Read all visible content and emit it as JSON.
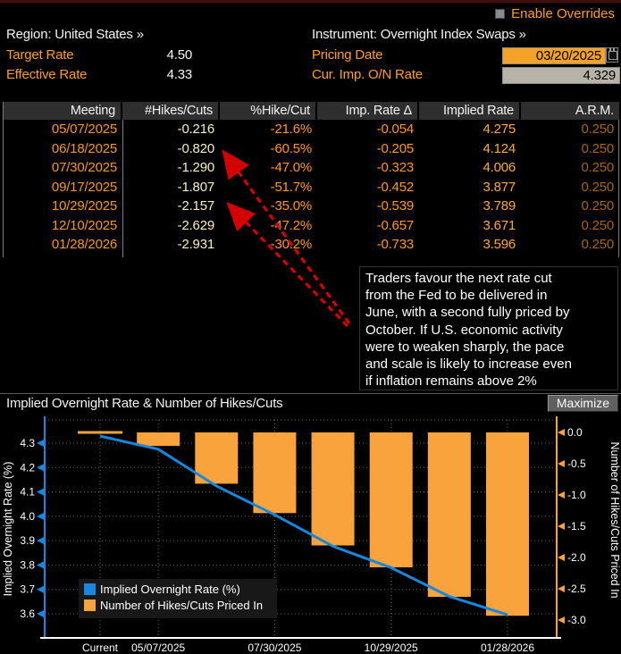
{
  "header": {
    "enable_overrides": "Enable Overrides",
    "region_label": "Region: United States »",
    "instrument_label": "Instrument: Overnight Index Swaps »",
    "target_rate_label": "Target Rate",
    "target_rate_value": "4.50",
    "effective_rate_label": "Effective Rate",
    "effective_rate_value": "4.33",
    "pricing_date_label": "Pricing Date",
    "pricing_date_value": "03/20/2025",
    "cur_imp_label": "Cur. Imp. O/N Rate",
    "cur_imp_value": "4.329"
  },
  "table": {
    "columns": [
      "Meeting",
      "#Hikes/Cuts",
      "%Hike/Cut",
      "Imp. Rate Δ",
      "Implied Rate",
      "A.R.M."
    ],
    "rows": [
      [
        "05/07/2025",
        "-0.216",
        "-21.6%",
        "-0.054",
        "4.275",
        "0.250"
      ],
      [
        "06/18/2025",
        "-0.820",
        "-60.5%",
        "-0.205",
        "4.124",
        "0.250"
      ],
      [
        "07/30/2025",
        "-1.290",
        "-47.0%",
        "-0.323",
        "4.006",
        "0.250"
      ],
      [
        "09/17/2025",
        "-1.807",
        "-51.7%",
        "-0.452",
        "3.877",
        "0.250"
      ],
      [
        "10/29/2025",
        "-2.157",
        "-35.0%",
        "-0.539",
        "3.789",
        "0.250"
      ],
      [
        "12/10/2025",
        "-2.629",
        "-47.2%",
        "-0.657",
        "3.671",
        "0.250"
      ],
      [
        "01/28/2026",
        "-2.931",
        "-30.2%",
        "-0.733",
        "3.596",
        "0.250"
      ]
    ]
  },
  "annotation": {
    "lines": [
      "Traders favour the next rate cut",
      "from the Fed to be delivered in",
      "June, with a second fully priced by",
      "October. If U.S. economic activity",
      "were to weaken sharply, the pace",
      "and scale is likely to increase even",
      "if inflation remains above 2%"
    ],
    "text": "Traders favour the next rate cut from the Fed to be delivered in June, with a second fully priced by October. If U.S. economic activity were to weaken sharply, the pace and scale is likely to increase even if inflation remains above 2%"
  },
  "chart": {
    "title": "Implied Overnight Rate & Number of Hikes/Cuts",
    "maximize_label": "Maximize"
  },
  "chart_data": {
    "type": "bar",
    "subtype": "combo bar+line, dual axis",
    "title": "Implied Overnight Rate & Number of Hikes/Cuts",
    "categories": [
      "Current",
      "05/07/2025",
      "06/18/2025",
      "07/30/2025",
      "09/17/2025",
      "10/29/2025",
      "12/10/2025",
      "01/28/2026"
    ],
    "series": [
      {
        "name": "Implied Overnight Rate (%)",
        "kind": "line",
        "axis": "left",
        "color": "#1787e0",
        "values": [
          4.329,
          4.275,
          4.124,
          4.006,
          3.877,
          3.789,
          3.671,
          3.596
        ]
      },
      {
        "name": "Number of Hikes/Cuts Priced In",
        "kind": "bar",
        "axis": "right",
        "color": "#f8a33c",
        "values": [
          0.0,
          -0.216,
          -0.82,
          -1.29,
          -1.807,
          -2.157,
          -2.629,
          -2.931
        ]
      }
    ],
    "left_axis": {
      "label": "Implied Overnight Rate (%)",
      "ticks": [
        4.3,
        4.2,
        4.1,
        4.0,
        3.9,
        3.8,
        3.7,
        3.6
      ],
      "range": [
        3.56,
        4.39
      ]
    },
    "right_axis": {
      "label": "Number of Hikes/Cuts Priced In",
      "ticks": [
        0.0,
        -0.5,
        -1.0,
        -1.5,
        -2.0,
        -2.5,
        -3.0
      ],
      "range": [
        0.2,
        -3.3
      ]
    },
    "x_ticks": [
      0,
      1,
      3,
      5,
      7
    ],
    "grid": "dotted",
    "legend_position": "bottom-left"
  },
  "colors": {
    "accent_orange": "#ff9f21",
    "date_orange": "#f59a1c",
    "table_value_yellow": "#f6f0bd",
    "arm_dim_orange": "#a4660e",
    "line_blue": "#1787e0",
    "bar_orange": "#f8a33c",
    "red_arrow": "#d40000",
    "field_amber": "#f5a328",
    "field_gray": "#b7b3a8",
    "header_bg": "#2e2e2e"
  }
}
